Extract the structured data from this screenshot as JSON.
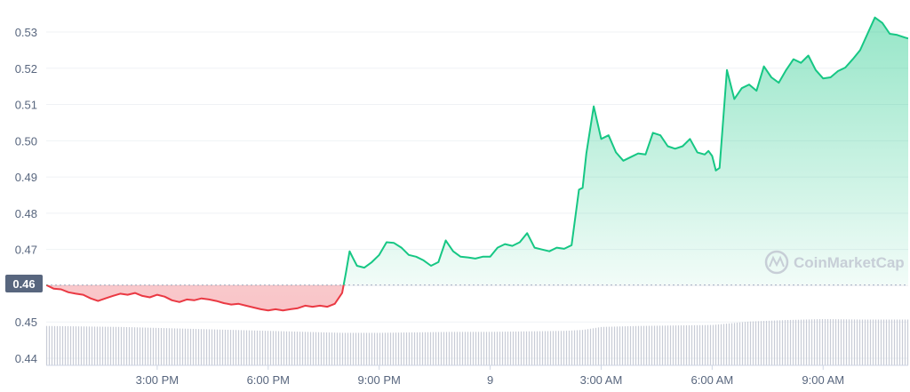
{
  "chart_data": {
    "type": "area",
    "watermark": "CoinMarketCap",
    "current_price_label": "0.46",
    "y_ticks": [
      "0.53",
      "0.52",
      "0.51",
      "0.50",
      "0.49",
      "0.48",
      "0.47",
      "0.46",
      "0.45",
      "0.44"
    ],
    "y_tick_values": [
      0.53,
      0.52,
      0.51,
      0.5,
      0.49,
      0.48,
      0.47,
      0.46,
      0.45,
      0.44
    ],
    "ylim": [
      0.44,
      0.5347
    ],
    "x_ticks": [
      "3:00 PM",
      "6:00 PM",
      "9:00 PM",
      "9",
      "3:00 AM",
      "6:00 AM",
      "9:00 AM"
    ],
    "x_tick_hours": [
      3,
      6,
      9,
      12,
      15,
      18,
      21
    ],
    "xlim_hours": [
      0.0,
      23.3
    ],
    "baseline": 0.4602,
    "colors": {
      "up": "#16c784",
      "down": "#ea3943",
      "volume": "#c8ccd6",
      "grid": "#eff2f5"
    },
    "series": [
      {
        "x": [
          0.0,
          0.2,
          0.4,
          0.6,
          0.8,
          1.0,
          1.2,
          1.4,
          1.6,
          1.8,
          2.0,
          2.2,
          2.4,
          2.6,
          2.8,
          3.0,
          3.2,
          3.4,
          3.6,
          3.8,
          4.0,
          4.2,
          4.4,
          4.6,
          4.8,
          5.0,
          5.2,
          5.4,
          5.6,
          5.8,
          6.0,
          6.2,
          6.4,
          6.6,
          6.8,
          7.0,
          7.2,
          7.4,
          7.6,
          7.8,
          8.0,
          8.1,
          8.2,
          8.3,
          8.4,
          8.6,
          8.8,
          9.0,
          9.2,
          9.4,
          9.6,
          9.8,
          10.0,
          10.2,
          10.4,
          10.6,
          10.8,
          11.0,
          11.2,
          11.4,
          11.6,
          11.8,
          12.0,
          12.2,
          12.4,
          12.6,
          12.8,
          13.0,
          13.2,
          13.4,
          13.6,
          13.8,
          14.0,
          14.2,
          14.4,
          14.5,
          14.6,
          14.8,
          15.0,
          15.2,
          15.4,
          15.6,
          15.8,
          16.0,
          16.2,
          16.4,
          16.6,
          16.8,
          17.0,
          17.2,
          17.4,
          17.6,
          17.8,
          17.9,
          18.0,
          18.1,
          18.2,
          18.4,
          18.6,
          18.8,
          19.0,
          19.2,
          19.4,
          19.6,
          19.8,
          20.0,
          20.2,
          20.4,
          20.6,
          20.8,
          21.0,
          21.2,
          21.4,
          21.6,
          21.8,
          22.0,
          22.2,
          22.4,
          22.6,
          22.8,
          23.0,
          23.2,
          23.3
        ],
        "y": [
          0.4602,
          0.4592,
          0.459,
          0.4582,
          0.4578,
          0.4575,
          0.4565,
          0.4558,
          0.4565,
          0.4572,
          0.4578,
          0.4575,
          0.458,
          0.4572,
          0.4568,
          0.4575,
          0.457,
          0.456,
          0.4555,
          0.4562,
          0.456,
          0.4565,
          0.4562,
          0.4558,
          0.4552,
          0.4548,
          0.455,
          0.4545,
          0.454,
          0.4535,
          0.4532,
          0.4535,
          0.4532,
          0.4535,
          0.4538,
          0.4545,
          0.4542,
          0.4545,
          0.4542,
          0.455,
          0.458,
          0.4635,
          0.4695,
          0.4675,
          0.4655,
          0.465,
          0.4665,
          0.4685,
          0.472,
          0.4718,
          0.4705,
          0.4685,
          0.468,
          0.467,
          0.4655,
          0.4665,
          0.4725,
          0.4695,
          0.468,
          0.4678,
          0.4675,
          0.468,
          0.468,
          0.4705,
          0.4715,
          0.471,
          0.472,
          0.4745,
          0.4705,
          0.47,
          0.4695,
          0.4705,
          0.4702,
          0.4712,
          0.4865,
          0.487,
          0.4965,
          0.5095,
          0.5005,
          0.5015,
          0.4968,
          0.4945,
          0.4955,
          0.4965,
          0.4962,
          0.5022,
          0.5015,
          0.4985,
          0.4978,
          0.4985,
          0.5005,
          0.4968,
          0.4962,
          0.4972,
          0.4958,
          0.4918,
          0.4925,
          0.5195,
          0.5115,
          0.5145,
          0.5155,
          0.5138,
          0.5205,
          0.5175,
          0.516,
          0.5195,
          0.5225,
          0.5215,
          0.5235,
          0.5195,
          0.5172,
          0.5175,
          0.5192,
          0.5202,
          0.5225,
          0.525,
          0.5295,
          0.534,
          0.5325,
          0.5295,
          0.5292,
          0.5285,
          0.5282
        ]
      }
    ]
  },
  "volume_data": {
    "ylim": [
      0,
      1
    ],
    "x": [
      0.0,
      1.0,
      2.0,
      3.0,
      4.0,
      5.0,
      6.0,
      7.0,
      8.0,
      9.0,
      10.0,
      11.0,
      12.0,
      13.0,
      14.0,
      14.5,
      15.0,
      16.0,
      17.0,
      18.0,
      19.0,
      20.0,
      21.0,
      22.0,
      23.0,
      23.3
    ],
    "values": [
      0.8,
      0.79,
      0.78,
      0.76,
      0.74,
      0.72,
      0.7,
      0.68,
      0.66,
      0.66,
      0.67,
      0.68,
      0.68,
      0.69,
      0.7,
      0.72,
      0.78,
      0.8,
      0.81,
      0.82,
      0.89,
      0.92,
      0.94,
      0.93,
      0.93,
      0.93
    ]
  }
}
